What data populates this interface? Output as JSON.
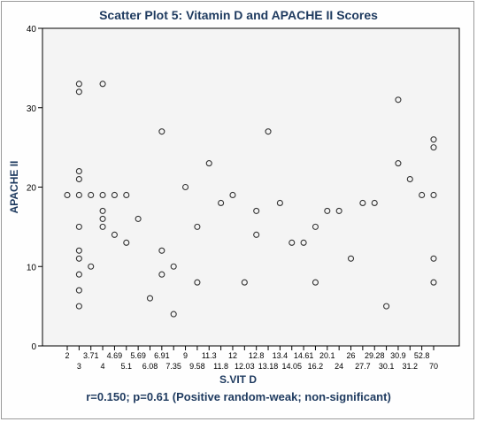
{
  "chart_data": {
    "type": "scatter",
    "title": "Scatter Plot 5: Vitamin D and APACHE II Scores",
    "xlabel": "S.VIT D",
    "ylabel": "APACHE II",
    "caption": "r=0.150; p=0.61 (Positive random-weak; non-significant)",
    "x_scale": "categorical",
    "categories": [
      "2",
      "3",
      "3.71",
      "4",
      "4.69",
      "5.1",
      "5.69",
      "6.08",
      "6.91",
      "7.35",
      "9",
      "9.58",
      "11.3",
      "11.8",
      "12",
      "12.03",
      "12.8",
      "13.18",
      "13.4",
      "14.05",
      "14.61",
      "16.2",
      "20.1",
      "24",
      "26",
      "27.7",
      "29.28",
      "30.1",
      "30.9",
      "31.2",
      "52.8",
      "70"
    ],
    "ylim": [
      0,
      40
    ],
    "yticks": [
      0,
      10,
      20,
      30,
      40
    ],
    "grid": false,
    "points": [
      {
        "x": "2",
        "y": 19
      },
      {
        "x": "3",
        "y": 33
      },
      {
        "x": "3",
        "y": 32
      },
      {
        "x": "3",
        "y": 22
      },
      {
        "x": "3",
        "y": 21
      },
      {
        "x": "3",
        "y": 19
      },
      {
        "x": "3",
        "y": 15
      },
      {
        "x": "3",
        "y": 12
      },
      {
        "x": "3",
        "y": 11
      },
      {
        "x": "3",
        "y": 9
      },
      {
        "x": "3",
        "y": 7
      },
      {
        "x": "3",
        "y": 5
      },
      {
        "x": "3.71",
        "y": 19
      },
      {
        "x": "3.71",
        "y": 10
      },
      {
        "x": "4",
        "y": 33
      },
      {
        "x": "4",
        "y": 19
      },
      {
        "x": "4",
        "y": 17
      },
      {
        "x": "4",
        "y": 16
      },
      {
        "x": "4",
        "y": 15
      },
      {
        "x": "4.69",
        "y": 19
      },
      {
        "x": "4.69",
        "y": 14
      },
      {
        "x": "5.1",
        "y": 19
      },
      {
        "x": "5.1",
        "y": 13
      },
      {
        "x": "5.69",
        "y": 16
      },
      {
        "x": "6.08",
        "y": 6
      },
      {
        "x": "6.91",
        "y": 27
      },
      {
        "x": "6.91",
        "y": 12
      },
      {
        "x": "6.91",
        "y": 9
      },
      {
        "x": "7.35",
        "y": 10
      },
      {
        "x": "7.35",
        "y": 4
      },
      {
        "x": "9",
        "y": 20
      },
      {
        "x": "9.58",
        "y": 15
      },
      {
        "x": "9.58",
        "y": 8
      },
      {
        "x": "11.3",
        "y": 23
      },
      {
        "x": "11.8",
        "y": 18
      },
      {
        "x": "12",
        "y": 19
      },
      {
        "x": "12.03",
        "y": 8
      },
      {
        "x": "12.8",
        "y": 17
      },
      {
        "x": "12.8",
        "y": 14
      },
      {
        "x": "13.18",
        "y": 27
      },
      {
        "x": "13.4",
        "y": 18
      },
      {
        "x": "14.05",
        "y": 13
      },
      {
        "x": "14.61",
        "y": 13
      },
      {
        "x": "16.2",
        "y": 15
      },
      {
        "x": "16.2",
        "y": 8
      },
      {
        "x": "20.1",
        "y": 17
      },
      {
        "x": "24",
        "y": 17
      },
      {
        "x": "26",
        "y": 11
      },
      {
        "x": "27.7",
        "y": 18
      },
      {
        "x": "29.28",
        "y": 18
      },
      {
        "x": "30.1",
        "y": 5
      },
      {
        "x": "30.9",
        "y": 31
      },
      {
        "x": "30.9",
        "y": 23
      },
      {
        "x": "31.2",
        "y": 21
      },
      {
        "x": "52.8",
        "y": 19
      },
      {
        "x": "70",
        "y": 26
      },
      {
        "x": "70",
        "y": 25
      },
      {
        "x": "70",
        "y": 19
      },
      {
        "x": "70",
        "y": 11
      },
      {
        "x": "70",
        "y": 8
      }
    ],
    "colors": {
      "title": "#1e3a5f",
      "plot_background": "#f4f4f4",
      "plot_border": "#000000",
      "marker": "#333333",
      "frame": "#9a9a9a"
    }
  }
}
